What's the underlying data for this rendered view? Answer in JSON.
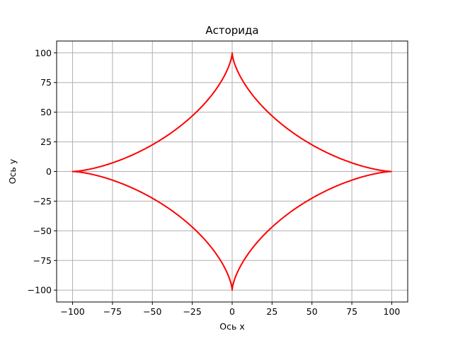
{
  "chart_data": {
    "type": "line",
    "title": "Асторида",
    "xlabel": "Ось x",
    "ylabel": "Ось y",
    "xlim": [
      -110,
      110
    ],
    "ylim": [
      -110,
      110
    ],
    "xticks": [
      -100,
      -75,
      -50,
      -25,
      0,
      25,
      50,
      75,
      100
    ],
    "yticks": [
      -100,
      -75,
      -50,
      -25,
      0,
      25,
      50,
      75,
      100
    ],
    "xtick_labels": [
      "−100",
      "−75",
      "−50",
      "−25",
      "0",
      "25",
      "50",
      "75",
      "100"
    ],
    "ytick_labels": [
      "−100",
      "−75",
      "−50",
      "−25",
      "0",
      "25",
      "50",
      "75",
      "100"
    ],
    "grid": true,
    "series": [
      {
        "equation": "x = 100·cos³(t), y = 100·sin³(t)",
        "amplitude": 100,
        "t_range": [
          0,
          6.2832
        ],
        "color": "#ff0000"
      }
    ]
  }
}
